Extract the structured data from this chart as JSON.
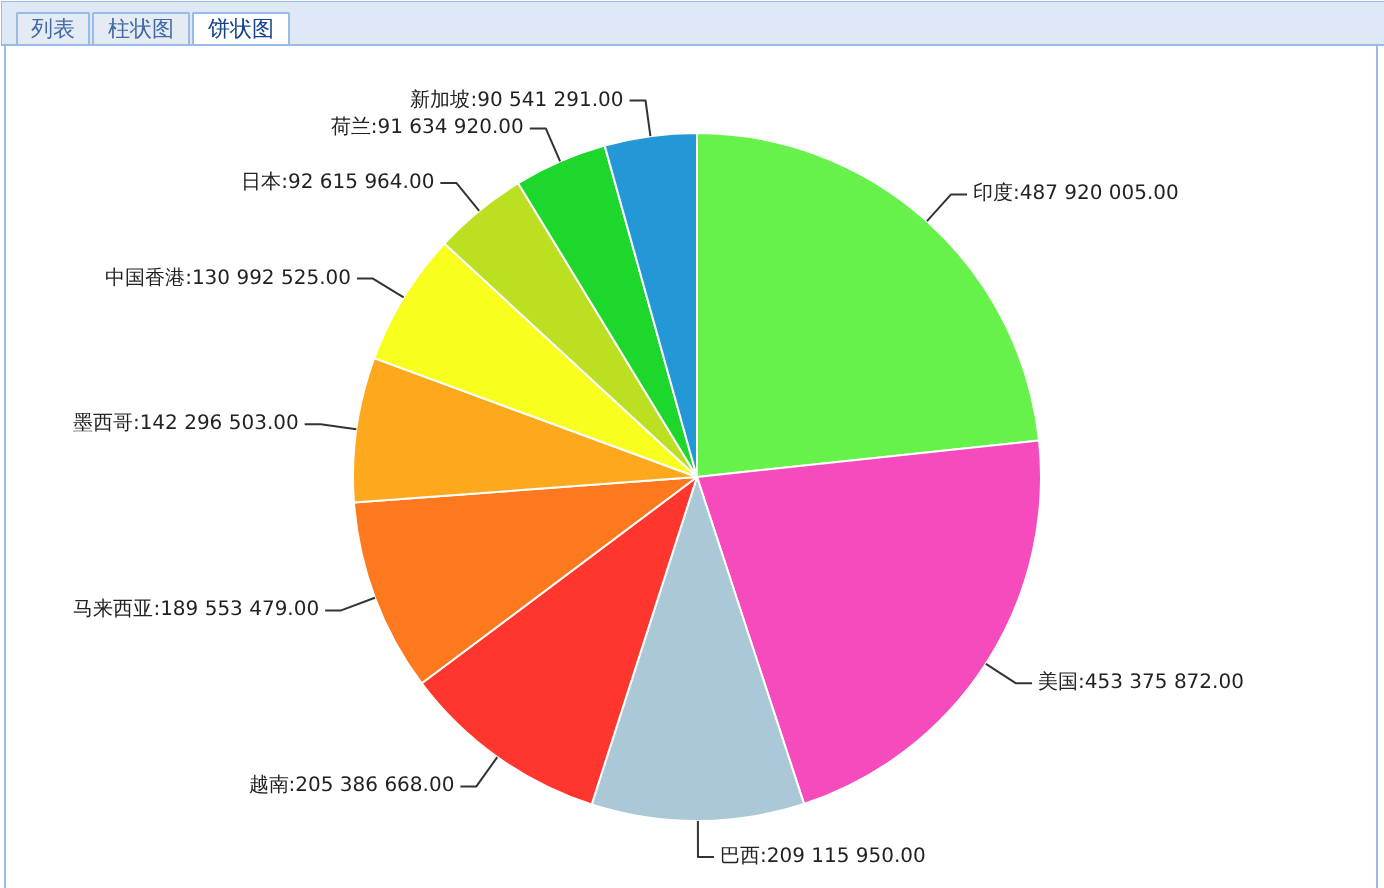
{
  "chart_data": {
    "type": "pie",
    "annotations": [
      "列表",
      "柱状图",
      "饼状图"
    ],
    "categories": [
      "印度",
      "美国",
      "巴西",
      "越南",
      "马来西亚",
      "墨西哥",
      "中国香港",
      "日本",
      "荷兰",
      "新加坡"
    ],
    "values": [
      487920005.0,
      453375872.0,
      209115950.0,
      205386668.0,
      189553479.0,
      142296503.0,
      130992525.0,
      92615964.0,
      91634920.0,
      90541291.0
    ],
    "value_labels": [
      "487 920 005.00",
      "453 375 872.00",
      "209 115 950.00",
      "205 386 668.00",
      "189 553 479.00",
      "142 296 503.00",
      "130 992 525.00",
      "92 615 964.00",
      "91 634 920.00",
      "90 541 291.00"
    ],
    "colors": [
      "#66f24a",
      "#f54bbd",
      "#abc8d6",
      "#ff362d",
      "#fe781e",
      "#fea81e",
      "#f8fe1e",
      "#bbe021",
      "#1ed72d",
      "#2498d6"
    ]
  }
}
